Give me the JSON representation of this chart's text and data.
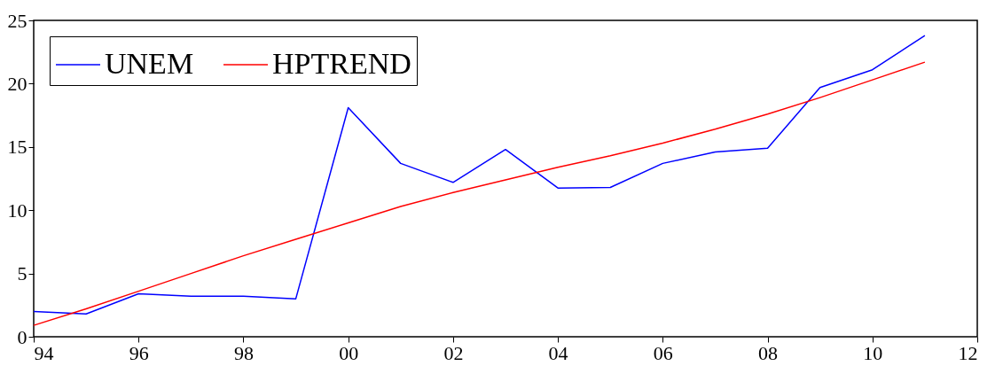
{
  "chart_data": {
    "type": "line",
    "x": [
      1994,
      1995,
      1996,
      1997,
      1998,
      1999,
      2000,
      2001,
      2002,
      2003,
      2004,
      2005,
      2006,
      2007,
      2008,
      2009,
      2010,
      2011
    ],
    "series": [
      {
        "name": "UNEM",
        "color": "#0000ff",
        "values": [
          2.0,
          1.8,
          3.4,
          3.2,
          3.2,
          3.0,
          18.1,
          13.7,
          12.2,
          14.8,
          11.75,
          11.8,
          13.7,
          14.6,
          14.9,
          19.7,
          21.1,
          23.8
        ]
      },
      {
        "name": "HPTREND",
        "color": "#ff0000",
        "values": [
          0.9,
          2.2,
          3.6,
          5.0,
          6.4,
          7.7,
          9.0,
          10.3,
          11.4,
          12.4,
          13.4,
          14.3,
          15.3,
          16.4,
          17.6,
          18.9,
          20.3,
          21.7
        ]
      }
    ],
    "xlim": [
      1994,
      2012
    ],
    "xticks": [
      {
        "value": 1994,
        "label": "94"
      },
      {
        "value": 1996,
        "label": "96"
      },
      {
        "value": 1998,
        "label": "98"
      },
      {
        "value": 2000,
        "label": "00"
      },
      {
        "value": 2002,
        "label": "02"
      },
      {
        "value": 2004,
        "label": "04"
      },
      {
        "value": 2006,
        "label": "06"
      },
      {
        "value": 2008,
        "label": "08"
      },
      {
        "value": 2010,
        "label": "10"
      },
      {
        "value": 2012,
        "label": "12"
      }
    ],
    "ylim": [
      0,
      25
    ],
    "yticks": [
      0,
      5,
      10,
      15,
      20,
      25
    ],
    "legend": "top left",
    "grid": false,
    "line_style": "solid",
    "marker": "none"
  }
}
